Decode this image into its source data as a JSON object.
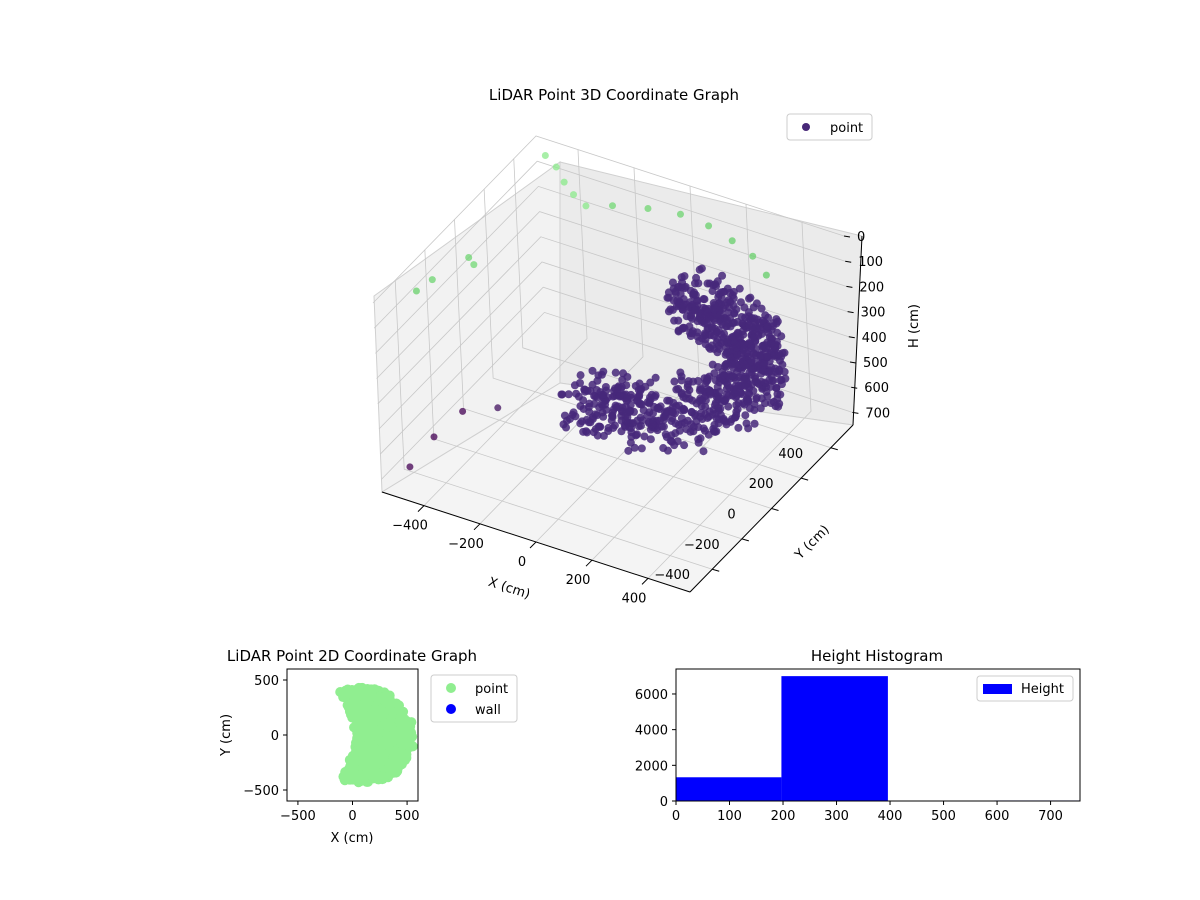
{
  "chart_data": [
    {
      "type": "scatter3d",
      "title": "LiDAR Point 3D Coordinate Graph",
      "xlabel": "X (cm)",
      "ylabel": "Y (cm)",
      "zlabel": "H (cm)",
      "xlim": [
        -550,
        550
      ],
      "ylim": [
        -550,
        550
      ],
      "zlim": [
        750,
        0
      ],
      "x_ticks": [
        -400,
        -200,
        0,
        200,
        400
      ],
      "x_tick_labels": [
        "−400",
        "−200",
        "0",
        "200",
        "400"
      ],
      "y_ticks": [
        -400,
        -200,
        0,
        200,
        400
      ],
      "y_tick_labels": [
        "−400",
        "−200",
        "0",
        "200",
        "400"
      ],
      "z_ticks": [
        0,
        100,
        200,
        300,
        400,
        500,
        600,
        700
      ],
      "z_tick_labels": [
        "0",
        "100",
        "200",
        "300",
        "400",
        "500",
        "600",
        "700"
      ],
      "legend": {
        "entries": [
          "point"
        ],
        "position": "upper-right"
      },
      "colormap": [
        "#440154",
        "#3b528b",
        "#21918c",
        "#5ec962",
        "#90ee90"
      ],
      "series": [
        {
          "name": "point",
          "color": "#482878",
          "shape": "half-ring",
          "center": [
            150,
            0
          ],
          "outer_radius": 420,
          "inner_radius": 230,
          "height_range": [
            200,
            390
          ],
          "note_points_estimated": true
        }
      ],
      "outliers": [
        {
          "x": -480,
          "y": 480,
          "h": 10
        },
        {
          "x": -420,
          "y": 440,
          "h": 10
        },
        {
          "x": -360,
          "y": 380,
          "h": 12
        },
        {
          "x": -300,
          "y": 330,
          "h": 10
        },
        {
          "x": -240,
          "y": 300,
          "h": 15
        },
        {
          "x": -420,
          "y": -120,
          "h": 60
        },
        {
          "x": -500,
          "y": -250,
          "h": 70
        },
        {
          "x": -520,
          "y": -320,
          "h": 80
        },
        {
          "x": -460,
          "y": -80,
          "h": 70
        },
        {
          "x": -200,
          "y": 400,
          "h": 60
        },
        {
          "x": -100,
          "y": 450,
          "h": 65
        },
        {
          "x": 0,
          "y": 480,
          "h": 70
        },
        {
          "x": 100,
          "y": 480,
          "h": 80
        },
        {
          "x": 200,
          "y": 450,
          "h": 85
        },
        {
          "x": 300,
          "y": 400,
          "h": 80
        },
        {
          "x": 380,
          "y": 340,
          "h": 90
        },
        {
          "x": -300,
          "y": -450,
          "h": 400
        },
        {
          "x": -380,
          "y": -500,
          "h": 500
        },
        {
          "x": -450,
          "y": -540,
          "h": 620
        },
        {
          "x": -200,
          "y": -400,
          "h": 380
        }
      ]
    },
    {
      "type": "scatter",
      "title": "LiDAR Point 2D Coordinate Graph",
      "xlabel": "X (cm)",
      "ylabel": "Y (cm)",
      "xlim": [
        -600,
        600
      ],
      "ylim": [
        -600,
        600
      ],
      "x_ticks": [
        -500,
        0,
        500
      ],
      "x_tick_labels": [
        "−500",
        "0",
        "500"
      ],
      "y_ticks": [
        -500,
        0,
        500
      ],
      "y_tick_labels": [
        "−500",
        "0",
        "500"
      ],
      "legend": {
        "entries": [
          "point",
          "wall"
        ],
        "position": "outside-right"
      },
      "series": [
        {
          "name": "point",
          "color": "#90ee90",
          "shape": "half-disc",
          "center": [
            150,
            0
          ],
          "radius": 430
        },
        {
          "name": "wall",
          "color": "#0000ff",
          "points": []
        }
      ]
    },
    {
      "type": "bar",
      "title": "Height Histogram",
      "xlim": [
        0,
        755
      ],
      "ylim": [
        0,
        7400
      ],
      "x_ticks": [
        0,
        100,
        200,
        300,
        400,
        500,
        600,
        700
      ],
      "x_tick_labels": [
        "0",
        "100",
        "200",
        "300",
        "400",
        "500",
        "600",
        "700"
      ],
      "y_ticks": [
        0,
        2000,
        4000,
        6000
      ],
      "y_tick_labels": [
        "0",
        "2000",
        "4000",
        "6000"
      ],
      "legend": {
        "entries": [
          "Height"
        ],
        "position": "upper-right"
      },
      "series": [
        {
          "name": "Height",
          "color": "#0000ff",
          "bins": [
            {
              "x0": 0,
              "x1": 197,
              "count": 1330
            },
            {
              "x0": 197,
              "x1": 396,
              "count": 7000
            },
            {
              "x0": 396,
              "x1": 595,
              "count": 0
            },
            {
              "x0": 595,
              "x1": 755,
              "count": 30
            }
          ]
        }
      ]
    }
  ]
}
